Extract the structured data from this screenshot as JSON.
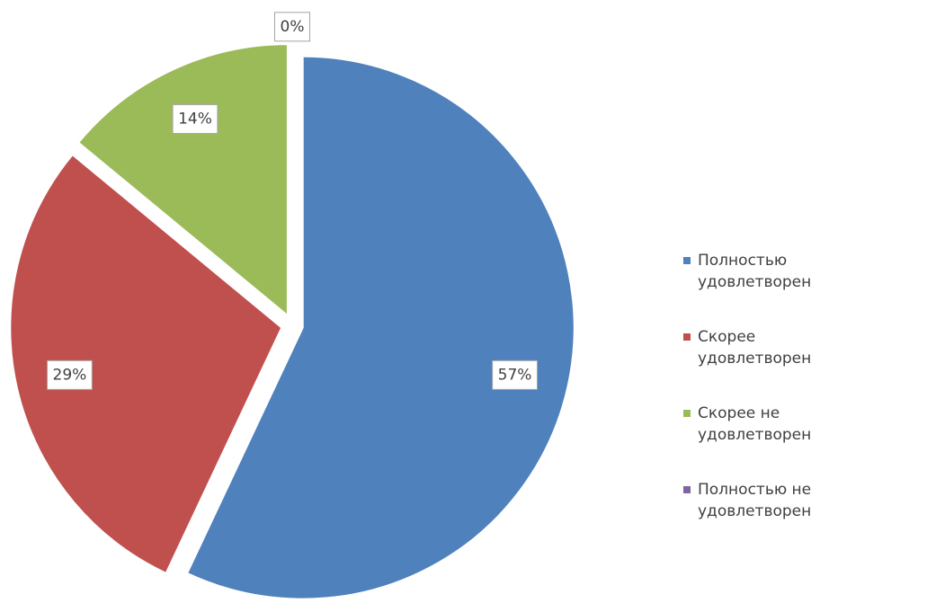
{
  "chart_data": {
    "type": "pie",
    "categories": [
      "Полностью удовлетворен",
      "Скорее удовлетворен",
      "Скорее не удовлетворен",
      "Полностью не удовлетворен"
    ],
    "values": [
      57,
      29,
      14,
      0
    ],
    "value_labels": [
      "57%",
      "29%",
      "14%",
      "0%"
    ],
    "colors": [
      "#4f81bd",
      "#c0504d",
      "#9bbb59",
      "#8064a2"
    ],
    "legend": "right"
  }
}
